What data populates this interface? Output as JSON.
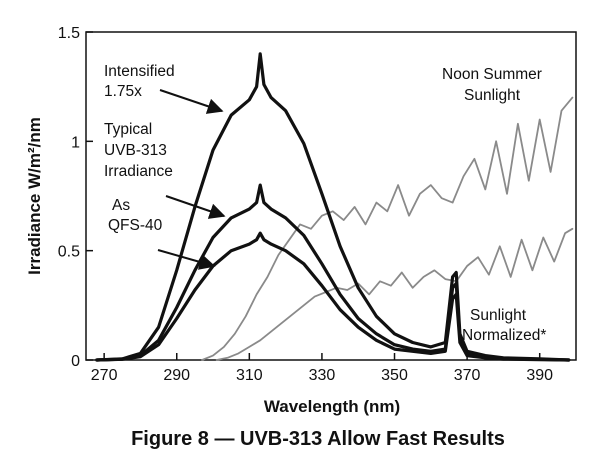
{
  "chart_data": {
    "type": "line",
    "title": "",
    "caption": "Figure 8 — UVB-313 Allow Fast Results",
    "xlabel": "Wavelength (nm)",
    "ylabel": "Irradiance W/m²/nm",
    "xlim": [
      265,
      400
    ],
    "ylim": [
      0,
      1.5
    ],
    "xticks": [
      270,
      290,
      310,
      330,
      350,
      370,
      390
    ],
    "yticks": [
      0,
      0.5,
      1,
      1.5
    ],
    "ytick_labels": [
      "0",
      "0.5",
      "1",
      "1.5"
    ],
    "grid": false,
    "legend": "none",
    "colors": {
      "uvb": "#111111",
      "sunlight": "#8a8a8a"
    },
    "series": [
      {
        "group": "uvb",
        "x": [
          268,
          275,
          280,
          285,
          290,
          295,
          300,
          305,
          310,
          312,
          313,
          314,
          316,
          320,
          325,
          330,
          335,
          340,
          345,
          350,
          355,
          360,
          364,
          366,
          367,
          368,
          370,
          375,
          380,
          390,
          398
        ],
        "y": [
          0,
          0.005,
          0.03,
          0.15,
          0.41,
          0.7,
          0.96,
          1.12,
          1.19,
          1.25,
          1.4,
          1.26,
          1.2,
          1.14,
          0.99,
          0.76,
          0.52,
          0.33,
          0.2,
          0.12,
          0.08,
          0.06,
          0.08,
          0.38,
          0.4,
          0.12,
          0.04,
          0.02,
          0.01,
          0.005,
          0
        ]
      },
      {
        "group": "uvb",
        "x": [
          268,
          275,
          280,
          285,
          290,
          295,
          300,
          305,
          310,
          312,
          313,
          314,
          316,
          320,
          325,
          330,
          335,
          340,
          345,
          350,
          355,
          360,
          364,
          366,
          367,
          368,
          370,
          375,
          380,
          390,
          398
        ],
        "y": [
          0,
          0.004,
          0.02,
          0.09,
          0.24,
          0.41,
          0.56,
          0.65,
          0.69,
          0.72,
          0.8,
          0.72,
          0.69,
          0.65,
          0.57,
          0.44,
          0.3,
          0.19,
          0.12,
          0.07,
          0.05,
          0.04,
          0.05,
          0.33,
          0.35,
          0.1,
          0.03,
          0.01,
          0.005,
          0.003,
          0
        ]
      },
      {
        "group": "uvb",
        "x": [
          268,
          275,
          280,
          285,
          290,
          295,
          300,
          305,
          310,
          312,
          313,
          314,
          316,
          320,
          325,
          330,
          335,
          340,
          345,
          350,
          355,
          360,
          364,
          366,
          367,
          368,
          370,
          375,
          380,
          390,
          398
        ],
        "y": [
          0,
          0.003,
          0.015,
          0.07,
          0.19,
          0.32,
          0.43,
          0.5,
          0.53,
          0.55,
          0.58,
          0.55,
          0.53,
          0.5,
          0.44,
          0.34,
          0.23,
          0.15,
          0.09,
          0.05,
          0.04,
          0.03,
          0.04,
          0.28,
          0.3,
          0.08,
          0.02,
          0.01,
          0.004,
          0.002,
          0
        ]
      },
      {
        "group": "sunlight",
        "x": [
          297,
          300,
          303,
          306,
          309,
          312,
          315,
          318,
          321,
          324,
          327,
          330,
          333,
          336,
          339,
          342,
          345,
          348,
          351,
          354,
          357,
          360,
          363,
          366,
          369,
          372,
          375,
          378,
          381,
          384,
          387,
          390,
          393,
          396,
          399
        ],
        "y": [
          0,
          0.02,
          0.06,
          0.12,
          0.2,
          0.3,
          0.38,
          0.48,
          0.55,
          0.62,
          0.6,
          0.66,
          0.68,
          0.64,
          0.7,
          0.62,
          0.72,
          0.68,
          0.8,
          0.66,
          0.76,
          0.8,
          0.74,
          0.72,
          0.84,
          0.92,
          0.78,
          1.0,
          0.76,
          1.08,
          0.82,
          1.1,
          0.86,
          1.14,
          1.2
        ]
      },
      {
        "group": "sunlight",
        "x": [
          301,
          304,
          307,
          310,
          313,
          316,
          319,
          322,
          325,
          328,
          331,
          334,
          337,
          340,
          343,
          346,
          349,
          352,
          355,
          358,
          361,
          364,
          367,
          370,
          373,
          376,
          379,
          382,
          385,
          388,
          391,
          394,
          397,
          399
        ],
        "y": [
          0,
          0.01,
          0.03,
          0.06,
          0.09,
          0.13,
          0.17,
          0.21,
          0.25,
          0.29,
          0.31,
          0.33,
          0.32,
          0.35,
          0.3,
          0.36,
          0.34,
          0.4,
          0.33,
          0.38,
          0.41,
          0.37,
          0.36,
          0.43,
          0.47,
          0.39,
          0.52,
          0.38,
          0.55,
          0.41,
          0.56,
          0.45,
          0.58,
          0.6
        ]
      }
    ],
    "annotations": [
      {
        "id": "intensified",
        "lines": [
          "Intensified",
          "1.75x"
        ]
      },
      {
        "id": "typical",
        "lines": [
          "Typical",
          "UVB-313",
          "Irradiance"
        ]
      },
      {
        "id": "as-qfs",
        "lines": [
          "As",
          "QFS-40"
        ]
      },
      {
        "id": "noon",
        "lines": [
          "Noon Summer",
          "Sunlight"
        ]
      },
      {
        "id": "sunlight-norm",
        "lines": [
          "Sunlight",
          "Normalized*"
        ]
      }
    ]
  }
}
